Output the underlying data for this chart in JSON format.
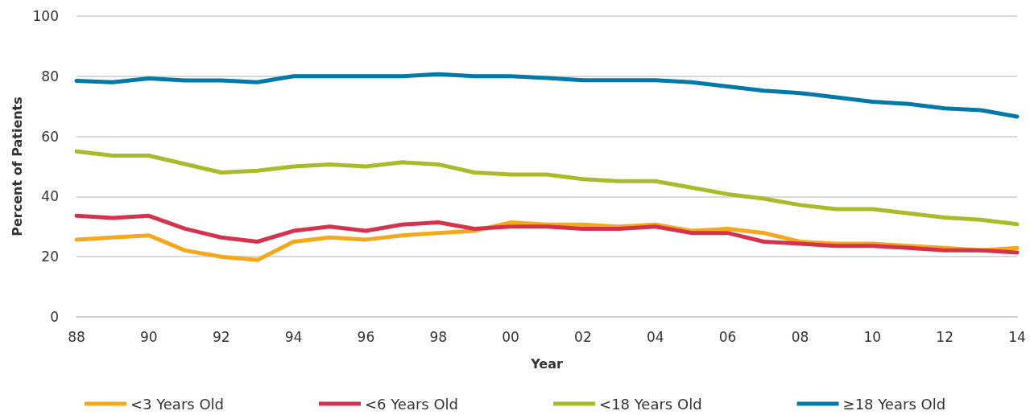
{
  "chart_data": {
    "type": "line",
    "xlabel": "Year",
    "ylabel": "Percent of Patients",
    "categories": [
      "88",
      null,
      "90",
      null,
      "92",
      null,
      "94",
      null,
      "96",
      null,
      "98",
      null,
      "00",
      null,
      "02",
      null,
      "04",
      null,
      "06",
      null,
      "08",
      null,
      "10",
      null,
      "12",
      null,
      "14"
    ],
    "series": [
      {
        "name": "<3 Years Old",
        "color": "#f5a81c",
        "values": [
          25.7,
          26.4,
          27.1,
          22.1,
          20,
          18.9,
          25,
          26.4,
          25.7,
          27.1,
          27.9,
          28.6,
          31.4,
          30.7,
          30.7,
          30,
          30.7,
          28.6,
          29.3,
          27.9,
          25,
          24.3,
          24.3,
          23.6,
          22.9,
          22.1,
          22.9
        ]
      },
      {
        "name": "<6 Years Old",
        "color": "#d4334e",
        "values": [
          33.6,
          32.9,
          33.6,
          29.3,
          26.4,
          25,
          28.6,
          30,
          28.6,
          30.7,
          31.4,
          29.3,
          30,
          30,
          29.3,
          29.3,
          30,
          27.9,
          27.9,
          25,
          24.3,
          23.6,
          23.6,
          22.9,
          22.1,
          22.1,
          21.4
        ]
      },
      {
        "name": "<18 Years Old",
        "color": "#a9bb2a",
        "values": [
          55,
          53.6,
          53.6,
          50.8,
          48,
          48.6,
          50,
          50.7,
          50,
          51.4,
          50.7,
          48,
          47.3,
          47.3,
          45.8,
          45.1,
          45.1,
          43,
          40.8,
          39.3,
          37.2,
          35.8,
          35.8,
          34.4,
          33,
          32.3,
          30.8
        ]
      },
      {
        "name": "≥18 Years Old",
        "color": "#0078a8",
        "values": [
          78.5,
          78,
          79.3,
          78.6,
          78.6,
          78,
          80,
          80,
          80,
          80,
          80.7,
          80,
          80,
          79.4,
          78.7,
          78.7,
          78.7,
          78,
          76.6,
          75.2,
          74.4,
          73,
          71.5,
          70.8,
          69.3,
          68.7,
          66.6
        ]
      }
    ],
    "ylim": [
      0,
      100
    ],
    "yticks": [
      0,
      20,
      40,
      60,
      80,
      100
    ],
    "grid": "y",
    "legend": "bottom",
    "marker": "none",
    "line_style": "solid"
  }
}
